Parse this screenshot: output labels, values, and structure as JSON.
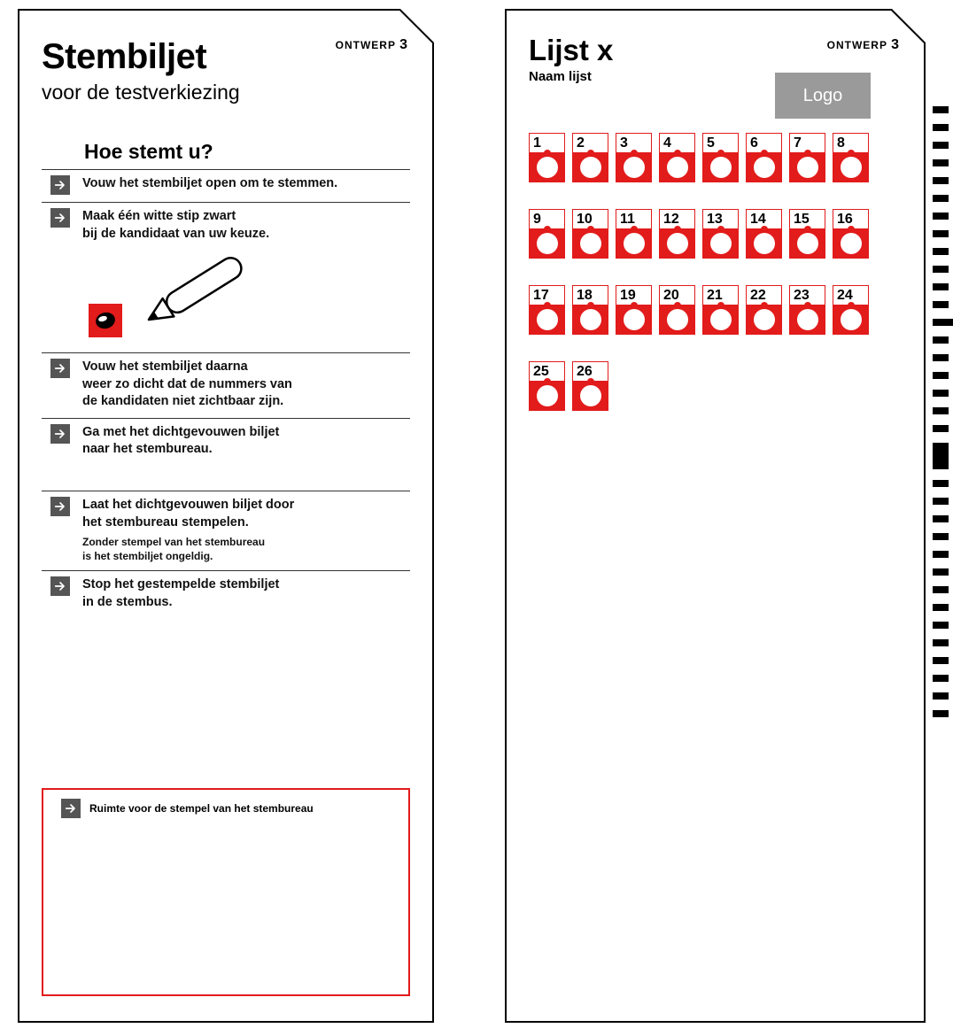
{
  "design_label": "ONTWERP",
  "design_num": "3",
  "left": {
    "title": "Stembiljet",
    "subtitle": "voor de testverkiezing",
    "how_title": "Hoe stemt u?",
    "steps": [
      {
        "text": "Vouw het stembiljet open om te stemmen."
      },
      {
        "text": "Maak één witte stip zwart\nbij de kandidaat van uw keuze."
      },
      {
        "text": "Vouw het stembiljet daarna\nweer zo dicht dat de nummers van\nde kandidaten niet zichtbaar zijn."
      },
      {
        "text": "Ga met het dichtgevouwen biljet\nnaar het stembureau."
      },
      {
        "text": "Laat het dichtgevouwen biljet door\nhet stembureau stempelen.",
        "small": "Zonder stempel van het stembureau\nis het stembiljet ongeldig."
      },
      {
        "text": "Stop het gestempelde stembiljet\nin de stembus."
      }
    ],
    "stamp_label": "Ruimte voor de stempel van het stembureau"
  },
  "right": {
    "title": "Lijst x",
    "subtitle": "Naam lijst",
    "logo": "Logo",
    "grid": {
      "type": "numbered-ballot-grid",
      "columns": 8,
      "count": 26,
      "numbers": [
        1,
        2,
        3,
        4,
        5,
        6,
        7,
        8,
        9,
        10,
        11,
        12,
        13,
        14,
        15,
        16,
        17,
        18,
        19,
        20,
        21,
        22,
        23,
        24,
        25,
        26
      ],
      "cell_border_color": "#e21b1b",
      "cell_bg_color": "#e21b1b",
      "dot_color": "#ffffff",
      "row_gap": 30,
      "col_gap": 8
    }
  },
  "colors": {
    "accent": "#e21b1b",
    "arrow_bg": "#555555",
    "logo_bg": "#9a9a9a",
    "border": "#000000",
    "bg": "#ffffff"
  },
  "timing_marks": {
    "count": 34,
    "wide_indices": [
      12
    ],
    "tall_indices": [
      19
    ],
    "width": 18,
    "height": 8,
    "gap": 12,
    "color": "#000000"
  }
}
